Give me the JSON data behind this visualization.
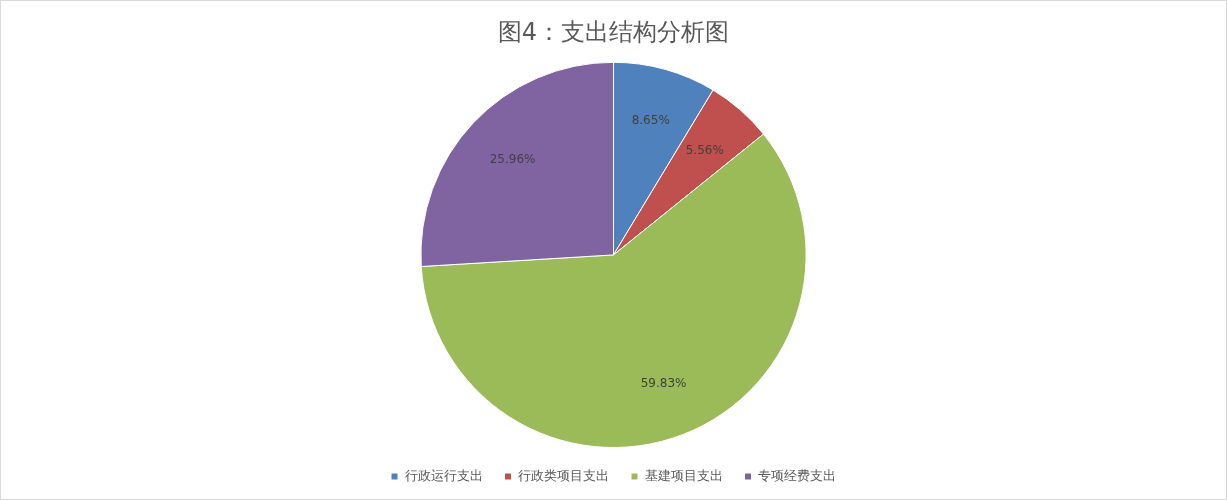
{
  "chart_data": {
    "type": "pie",
    "title": "图4：支出结构分析图",
    "categories": [
      "行政运行支出",
      "行政类项目支出",
      "基建项目支出",
      "专项经费支出"
    ],
    "values": [
      8.65,
      5.56,
      59.83,
      25.96
    ],
    "colors": [
      "#4f81bd",
      "#c0504d",
      "#9bbb59",
      "#8064a2"
    ],
    "value_labels": [
      "8.65%",
      "5.56%",
      "59.83%",
      "25.96%"
    ],
    "legend": "bottom"
  }
}
